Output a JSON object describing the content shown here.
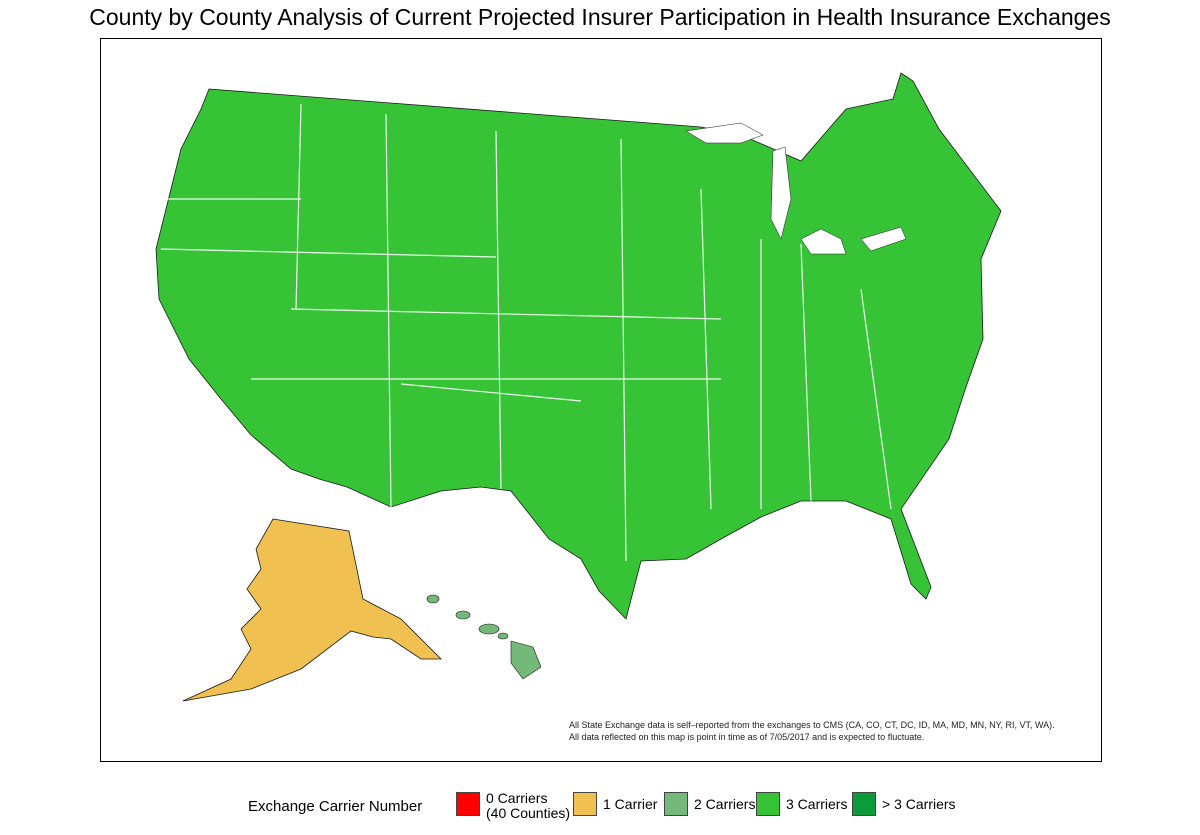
{
  "title": "County by County Analysis of Current Projected Insurer Participation in Health Insurance Exchanges",
  "notes": [
    "All State Exchange data is self–reported from the exchanges to CMS (CA, CO, CT, DC, ID, MA, MD, MN, NY, RI, VT, WA).",
    "All data reflected on this map is point in time as of 7/05/2017 and is expected to fluctuate."
  ],
  "legend": {
    "title": "Exchange Carrier Number",
    "items": [
      {
        "label_line1": "0 Carriers",
        "label_line2": "(40 Counties)",
        "color": "#ff0000"
      },
      {
        "label_line1": "1 Carrier",
        "label_line2": "",
        "color": "#f0c050"
      },
      {
        "label_line1": "2 Carriers",
        "label_line2": "",
        "color": "#74b87a"
      },
      {
        "label_line1": "3 Carriers",
        "label_line2": "",
        "color": "#36c436"
      },
      {
        "label_line1": "> 3 Carriers",
        "label_line2": "",
        "color": "#0c9a3a"
      }
    ]
  },
  "map": {
    "border_color": "#222222",
    "regions": [
      "Contiguous United States",
      "Alaska",
      "Hawaii"
    ]
  }
}
